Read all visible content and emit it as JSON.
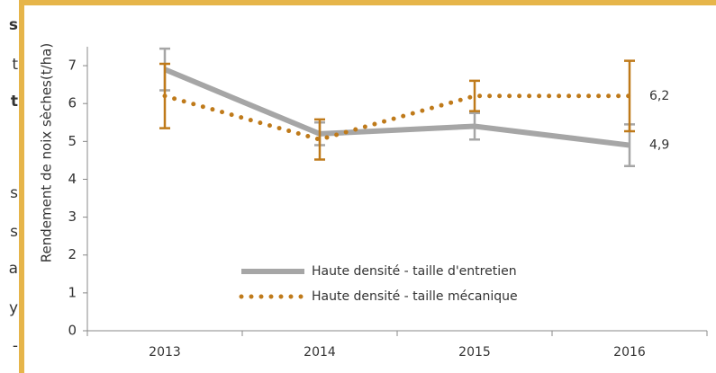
{
  "side_text": [
    "s",
    "t",
    "t",
    "s",
    "s",
    "a",
    "y",
    "-"
  ],
  "chart_data": {
    "type": "line",
    "ylabel": "Rendement de noix sèches(t/ha)",
    "categories": [
      "2013",
      "2014",
      "2015",
      "2016"
    ],
    "ylim": [
      0,
      7.5
    ],
    "yticks": [
      0,
      1,
      2,
      3,
      4,
      5,
      6,
      7
    ],
    "legend": "bottom-left",
    "grid": false,
    "series": [
      {
        "name": "Haute densité - taille d'entretien",
        "color": "#a6a6a6",
        "style": "solid",
        "values": [
          6.9,
          5.2,
          5.4,
          4.9
        ],
        "errors": [
          0.55,
          0.3,
          0.35,
          0.55
        ],
        "value_labels": [
          null,
          null,
          null,
          "4,9"
        ]
      },
      {
        "name": "Haute densité - taille mécanique",
        "color": "#bf7a1a",
        "style": "dotted",
        "values": [
          6.2,
          5.05,
          6.2,
          6.2
        ],
        "errors": [
          0.85,
          0.53,
          0.4,
          0.93
        ],
        "value_labels": [
          null,
          null,
          null,
          "6,2"
        ]
      }
    ]
  }
}
